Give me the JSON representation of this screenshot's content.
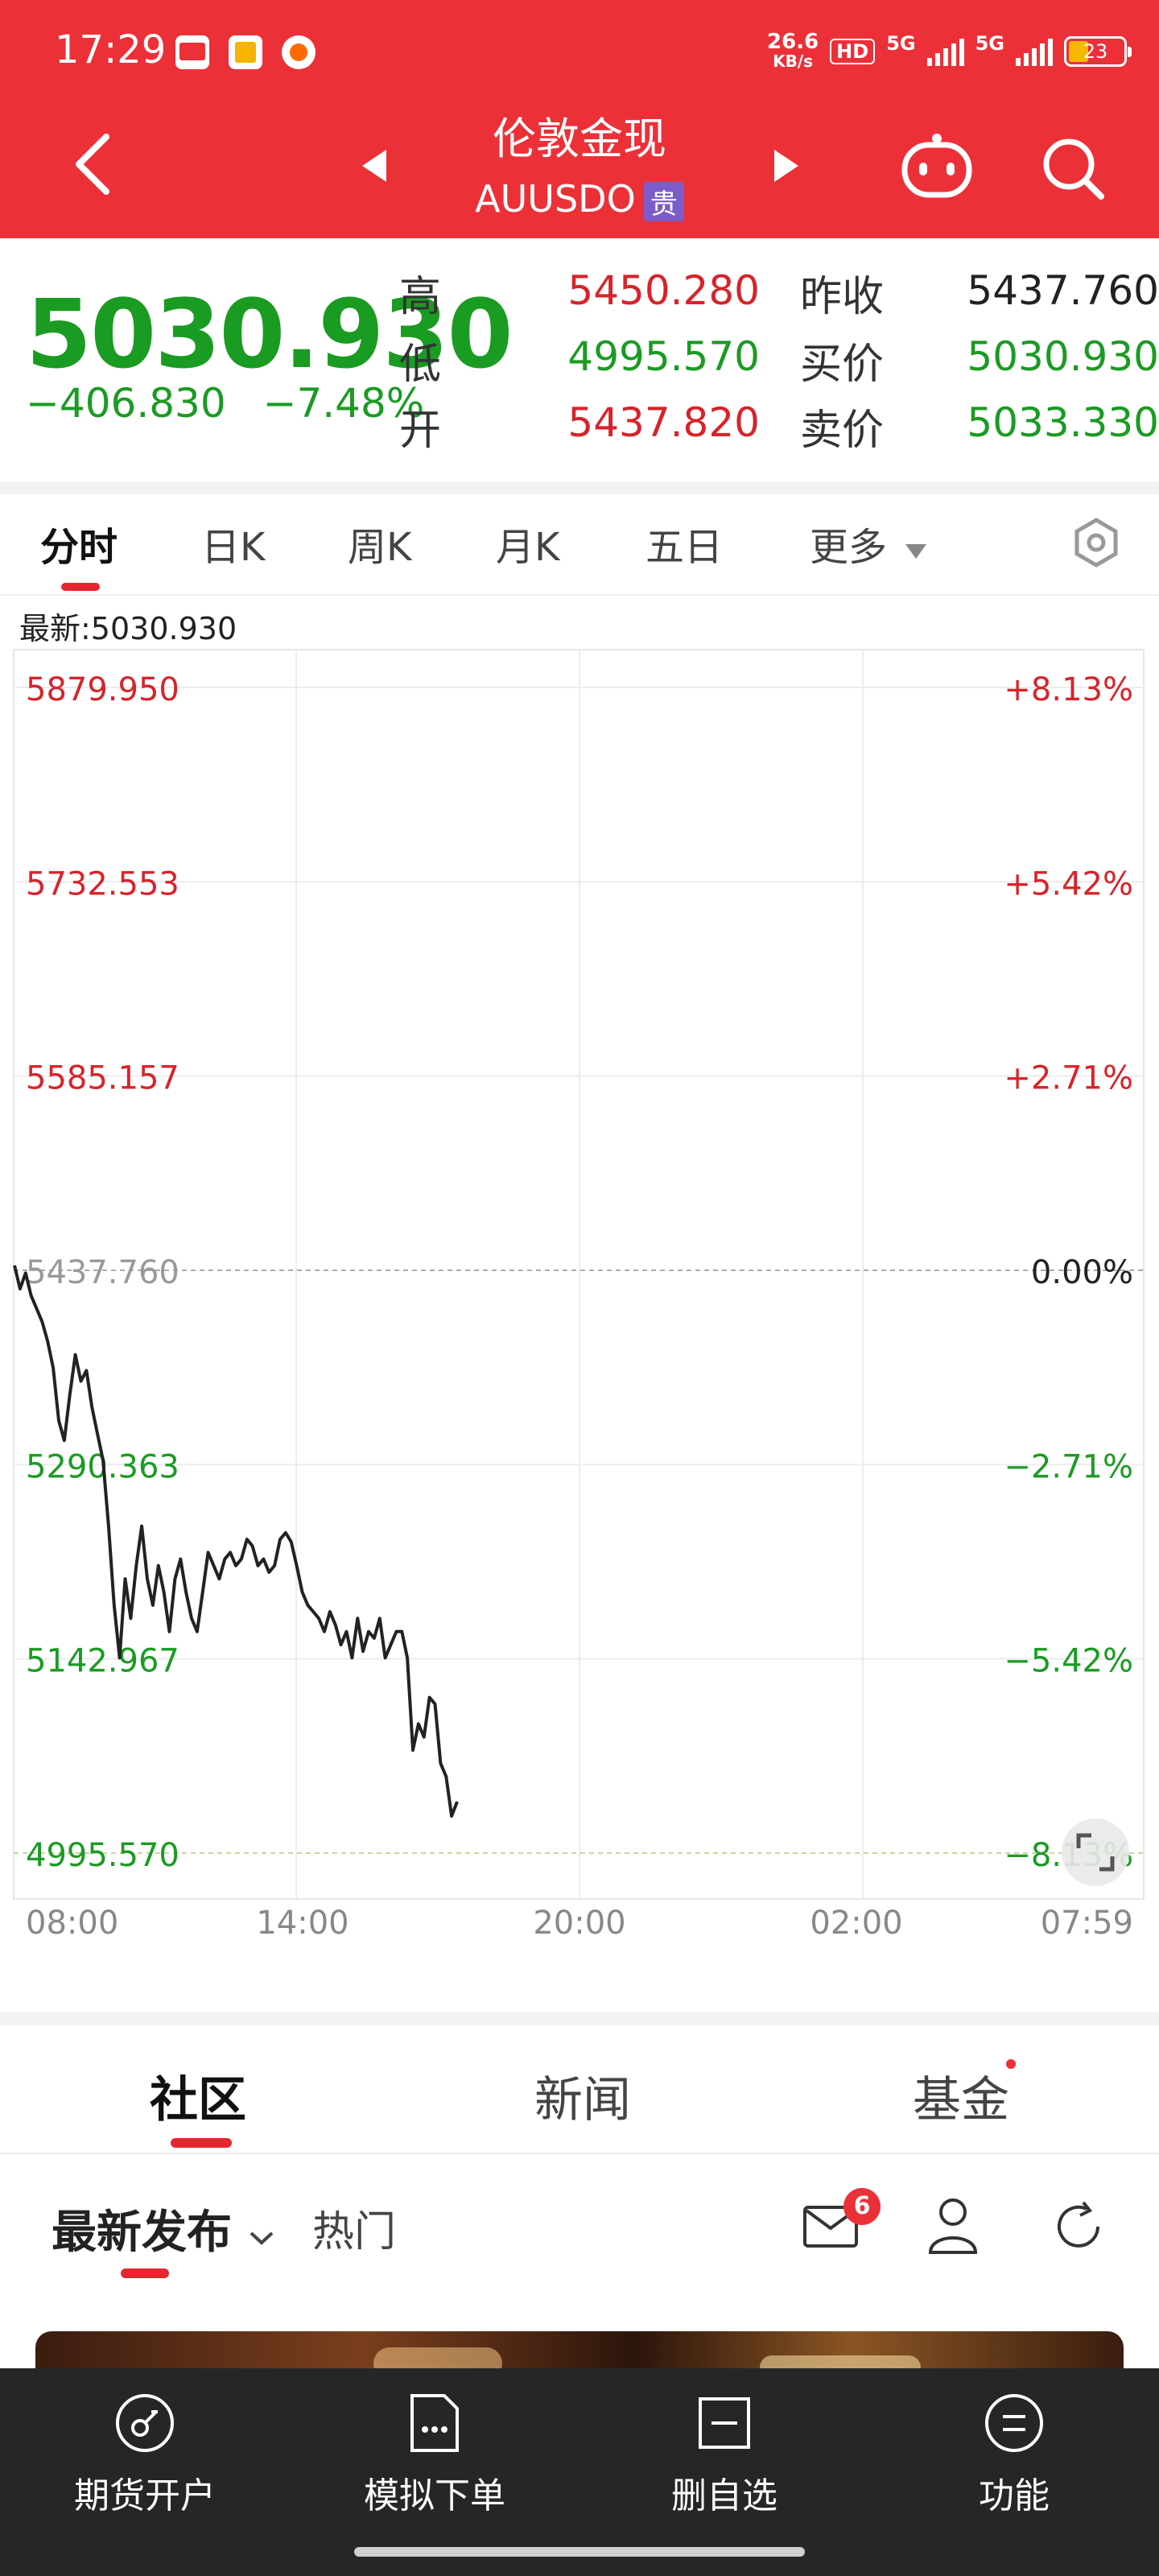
{
  "status_bar": {
    "time": "17:29",
    "net_speed_top": "26.6",
    "net_speed_bottom": "KB/s",
    "hd_label": "HD",
    "sim1": "5G",
    "sim2": "5G",
    "battery": "23",
    "app_icons": [
      "toutiao-icon",
      "notes-icon",
      "app-icon"
    ]
  },
  "header": {
    "title": "伦敦金现",
    "subtitle": "AUUSDO",
    "badge": "贵",
    "icons": [
      "back-icon",
      "prev-icon",
      "next-icon",
      "robot-icon",
      "search-icon"
    ]
  },
  "quote": {
    "price": "5030.930",
    "change": "−406.830",
    "change_pct": "−7.48%",
    "high_label": "高",
    "high": "5450.280",
    "low_label": "低",
    "low": "4995.570",
    "open_label": "开",
    "open": "5437.820",
    "prev_close_label": "昨收",
    "prev_close": "5437.760",
    "bid_label": "买价",
    "bid": "5030.930",
    "ask_label": "卖价",
    "ask": "5033.330"
  },
  "tabs": {
    "items": [
      "分时",
      "日K",
      "周K",
      "月K",
      "五日",
      "更多"
    ],
    "active": "分时",
    "settings_icon": "settings-hex-icon"
  },
  "latest_label": "最新:5030.930",
  "chart_data": {
    "type": "line",
    "series": [
      {
        "values": [
          5437.8,
          5420,
          5432,
          5415,
          5405,
          5395,
          5380,
          5360,
          5320,
          5305,
          5340,
          5370,
          5350,
          5358,
          5330,
          5310,
          5290,
          5240,
          5180,
          5140,
          5200,
          5170,
          5210,
          5240,
          5200,
          5180,
          5210,
          5190,
          5160,
          5200,
          5215,
          5190,
          5170,
          5160,
          5190,
          5220,
          5210,
          5200,
          5215,
          5220,
          5210,
          5215,
          5230,
          5225,
          5210,
          5215,
          5205,
          5210,
          5230,
          5235,
          5228,
          5210,
          5190,
          5180,
          5175,
          5170,
          5160,
          5175,
          5165,
          5150,
          5160,
          5140,
          5170,
          5145,
          5160,
          5155,
          5170,
          5140,
          5150,
          5160,
          5160,
          5140,
          5070,
          5090,
          5080,
          5110,
          5105,
          5060,
          5050,
          5020,
          5030.93
        ]
      }
    ],
    "price_axis": [
      "5879.950",
      "5732.553",
      "5585.157",
      "5437.760",
      "5290.363",
      "5142.967",
      "4995.570"
    ],
    "pct_axis": [
      "+8.13%",
      "+5.42%",
      "+2.71%",
      "0.00%",
      "−2.71%",
      "−5.42%",
      "−8.13%"
    ],
    "x_labels": [
      "08:00",
      "14:00",
      "20:00",
      "02:00",
      "07:59"
    ],
    "ylim": [
      4995.57,
      5879.95
    ],
    "reference": 5437.76,
    "colors": {
      "line": "#222222",
      "up": "#d8232a",
      "down": "#1a9b22",
      "ref": "#999999"
    }
  },
  "sections": {
    "items": [
      "社区",
      "新闻",
      "基金"
    ],
    "active": "社区"
  },
  "feed": {
    "latest": "最新发布",
    "hot": "热门",
    "mail_count": "6"
  },
  "bottom_bar": {
    "items": [
      {
        "label": "期货开户",
        "icon": "account-open-icon"
      },
      {
        "label": "模拟下单",
        "icon": "sim-order-icon"
      },
      {
        "label": "删自选",
        "icon": "remove-watchlist-icon"
      },
      {
        "label": "功能",
        "icon": "menu-icon"
      }
    ]
  }
}
